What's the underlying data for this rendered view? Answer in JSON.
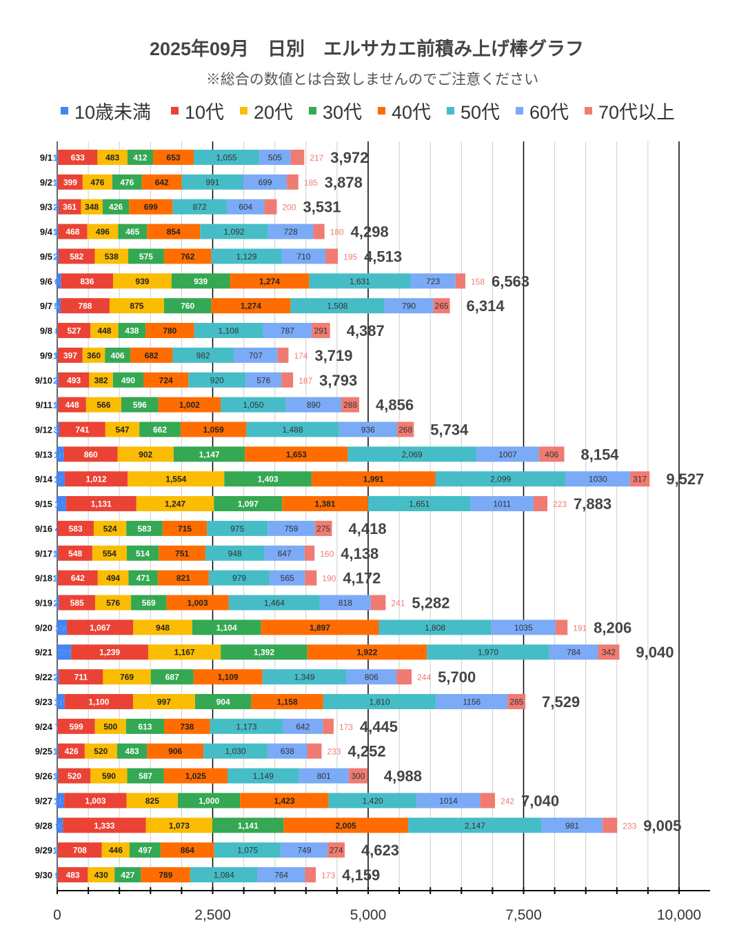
{
  "chart_data": {
    "type": "bar",
    "orientation": "horizontal",
    "stacked": true,
    "title": "2025年09月　日別　エルサカエ前積み上げ棒グラフ",
    "subtitle": "※総合の数値とは合致しませんのでご注意ください",
    "legend_position": "top",
    "xlim": [
      0,
      10000
    ],
    "x_ticks": [
      "0",
      "2,500",
      "5,000",
      "7,500",
      "10,000"
    ],
    "categories": [
      "9/1",
      "9/2",
      "9/3",
      "9/4",
      "9/5",
      "9/6",
      "9/7",
      "9/8",
      "9/9",
      "9/10",
      "9/11",
      "9/12",
      "9/13",
      "9/14",
      "9/15",
      "9/16",
      "9/17",
      "9/18",
      "9/19",
      "9/20",
      "9/21",
      "9/22",
      "9/23",
      "9/24",
      "9/25",
      "9/26",
      "9/27",
      "9/28",
      "9/29",
      "9/30"
    ],
    "series": [
      {
        "name": "10歳未満",
        "color": "#4285f4",
        "values": [
          14,
          10,
          21,
          15,
          22,
          63,
          54,
          8,
          11,
          21,
          16,
          33,
          110,
          121,
          142,
          4,
          16,
          10,
          26,
          156,
          224,
          25,
          119,
          7,
          16,
          16,
          113,
          92,
          10,
          9
        ]
      },
      {
        "name": "10代",
        "color": "#ea4335",
        "values": [
          633,
          399,
          361,
          468,
          582,
          836,
          788,
          527,
          397,
          493,
          448,
          741,
          860,
          1012,
          1131,
          583,
          548,
          642,
          585,
          1067,
          1239,
          711,
          1100,
          599,
          426,
          520,
          1003,
          1333,
          708,
          483
        ]
      },
      {
        "name": "20代",
        "color": "#fbbc04",
        "values": [
          483,
          476,
          348,
          496,
          538,
          939,
          875,
          448,
          360,
          382,
          566,
          547,
          902,
          1554,
          1247,
          524,
          554,
          494,
          576,
          948,
          1167,
          769,
          997,
          500,
          520,
          590,
          825,
          1073,
          446,
          430
        ]
      },
      {
        "name": "30代",
        "color": "#34a853",
        "values": [
          412,
          476,
          426,
          465,
          575,
          939,
          760,
          438,
          406,
          490,
          596,
          662,
          1147,
          1403,
          1097,
          583,
          514,
          471,
          569,
          1104,
          1392,
          687,
          904,
          613,
          483,
          587,
          1000,
          1141,
          497,
          427
        ]
      },
      {
        "name": "40代",
        "color": "#ff6d01",
        "values": [
          653,
          642,
          699,
          854,
          762,
          1274,
          1274,
          780,
          682,
          724,
          1002,
          1059,
          1653,
          1991,
          1381,
          715,
          751,
          821,
          1003,
          1897,
          1922,
          1109,
          1158,
          738,
          906,
          1025,
          1423,
          2005,
          864,
          789
        ]
      },
      {
        "name": "50代",
        "color": "#46bdc6",
        "values": [
          1055,
          991,
          872,
          1092,
          1129,
          1631,
          1508,
          1108,
          982,
          920,
          1050,
          1488,
          2069,
          2099,
          1651,
          975,
          948,
          979,
          1464,
          1808,
          1970,
          1349,
          1810,
          1173,
          1030,
          1149,
          1420,
          2147,
          1075,
          1084
        ]
      },
      {
        "name": "60代",
        "color": "#7baaf7",
        "values": [
          505,
          699,
          604,
          728,
          710,
          723,
          790,
          787,
          707,
          576,
          890,
          936,
          1007,
          1030,
          1011,
          759,
          647,
          565,
          818,
          1035,
          784,
          806,
          1156,
          642,
          638,
          801,
          1014,
          981,
          749,
          764
        ]
      },
      {
        "name": "70代以上",
        "color": "#f07b72",
        "values": [
          217,
          185,
          200,
          180,
          195,
          158,
          265,
          291,
          174,
          187,
          288,
          268,
          406,
          317,
          223,
          275,
          160,
          190,
          241,
          191,
          342,
          244,
          285,
          173,
          233,
          300,
          242,
          233,
          274,
          173
        ]
      }
    ],
    "totals": [
      "3,972",
      "3,878",
      "3,531",
      "4,298",
      "4,513",
      "6,563",
      "6,314",
      "4,387",
      "3,719",
      "3,793",
      "4,856",
      "5,734",
      "8,154",
      "9,527",
      "7,883",
      "4,418",
      "4,138",
      "4,172",
      "5,282",
      "8,206",
      "9,040",
      "5,700",
      "7,529",
      "4,445",
      "4,252",
      "4,988",
      "7,040",
      "9,005",
      "4,623",
      "4,159"
    ]
  }
}
